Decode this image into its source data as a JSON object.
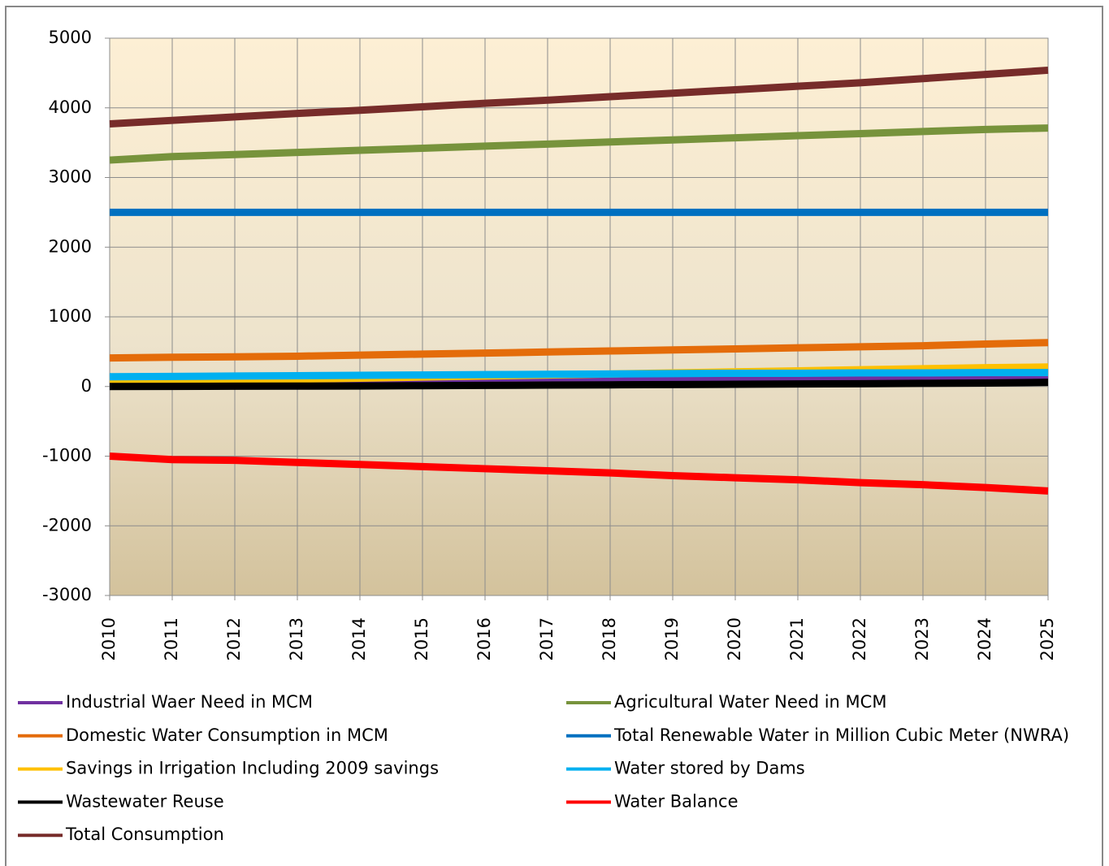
{
  "chart_data": {
    "type": "line",
    "x": [
      2010,
      2011,
      2012,
      2013,
      2014,
      2015,
      2016,
      2017,
      2018,
      2019,
      2020,
      2021,
      2022,
      2023,
      2024,
      2025
    ],
    "xlim": [
      2010,
      2025
    ],
    "xticks": [
      2010,
      2011,
      2012,
      2013,
      2014,
      2015,
      2016,
      2017,
      2018,
      2019,
      2020,
      2021,
      2022,
      2023,
      2024,
      2025
    ],
    "ylim": [
      -3000,
      5000
    ],
    "yticks": [
      -3000,
      -2000,
      -1000,
      0,
      1000,
      2000,
      3000,
      4000,
      5000
    ],
    "grid": true,
    "legend": "bottom",
    "series": [
      {
        "name": "Industrial Waer Need in MCM",
        "color": "#7030a0",
        "values": [
          30,
          38,
          46,
          54,
          62,
          70,
          78,
          86,
          94,
          102,
          110,
          118,
          126,
          134,
          142,
          150
        ]
      },
      {
        "name": "Agricultural Water Need in MCM",
        "color": "#77933c",
        "values": [
          3250,
          3300,
          3330,
          3360,
          3390,
          3420,
          3450,
          3480,
          3510,
          3540,
          3570,
          3600,
          3630,
          3660,
          3690,
          3710
        ]
      },
      {
        "name": "Domestic Water Consumption in MCM",
        "color": "#e46c0a",
        "values": [
          410,
          420,
          425,
          435,
          450,
          465,
          480,
          495,
          510,
          525,
          540,
          555,
          570,
          585,
          610,
          630
        ]
      },
      {
        "name": "Total Renewable Water in Million Cubic Meter (NWRA)",
        "color": "#0070c0",
        "values": [
          2500,
          2500,
          2500,
          2500,
          2500,
          2500,
          2500,
          2500,
          2500,
          2500,
          2500,
          2500,
          2500,
          2500,
          2500,
          2500
        ]
      },
      {
        "name": "Savings in Irrigation Including 2009 savings",
        "color": "#ffc000",
        "values": [
          60,
          75,
          90,
          105,
          120,
          135,
          150,
          165,
          180,
          195,
          210,
          225,
          240,
          255,
          270,
          280
        ]
      },
      {
        "name": "Water stored by Dams",
        "color": "#00b0f0",
        "values": [
          140,
          145,
          150,
          155,
          160,
          165,
          170,
          175,
          180,
          185,
          190,
          190,
          195,
          195,
          200,
          200
        ]
      },
      {
        "name": "Wastewater Reuse",
        "color": "#000000",
        "values": [
          0,
          2,
          4,
          6,
          8,
          12,
          16,
          20,
          24,
          28,
          32,
          36,
          40,
          45,
          50,
          60
        ]
      },
      {
        "name": "Water Balance",
        "color": "#ff0000",
        "values": [
          -1000,
          -1050,
          -1060,
          -1090,
          -1120,
          -1150,
          -1180,
          -1210,
          -1240,
          -1280,
          -1310,
          -1340,
          -1380,
          -1410,
          -1450,
          -1500
        ]
      },
      {
        "name": "Total Consumption",
        "color": "#772c2a",
        "values": [
          3770,
          3820,
          3870,
          3920,
          3965,
          4015,
          4065,
          4110,
          4160,
          4210,
          4260,
          4310,
          4360,
          4420,
          4480,
          4540
        ]
      }
    ]
  }
}
